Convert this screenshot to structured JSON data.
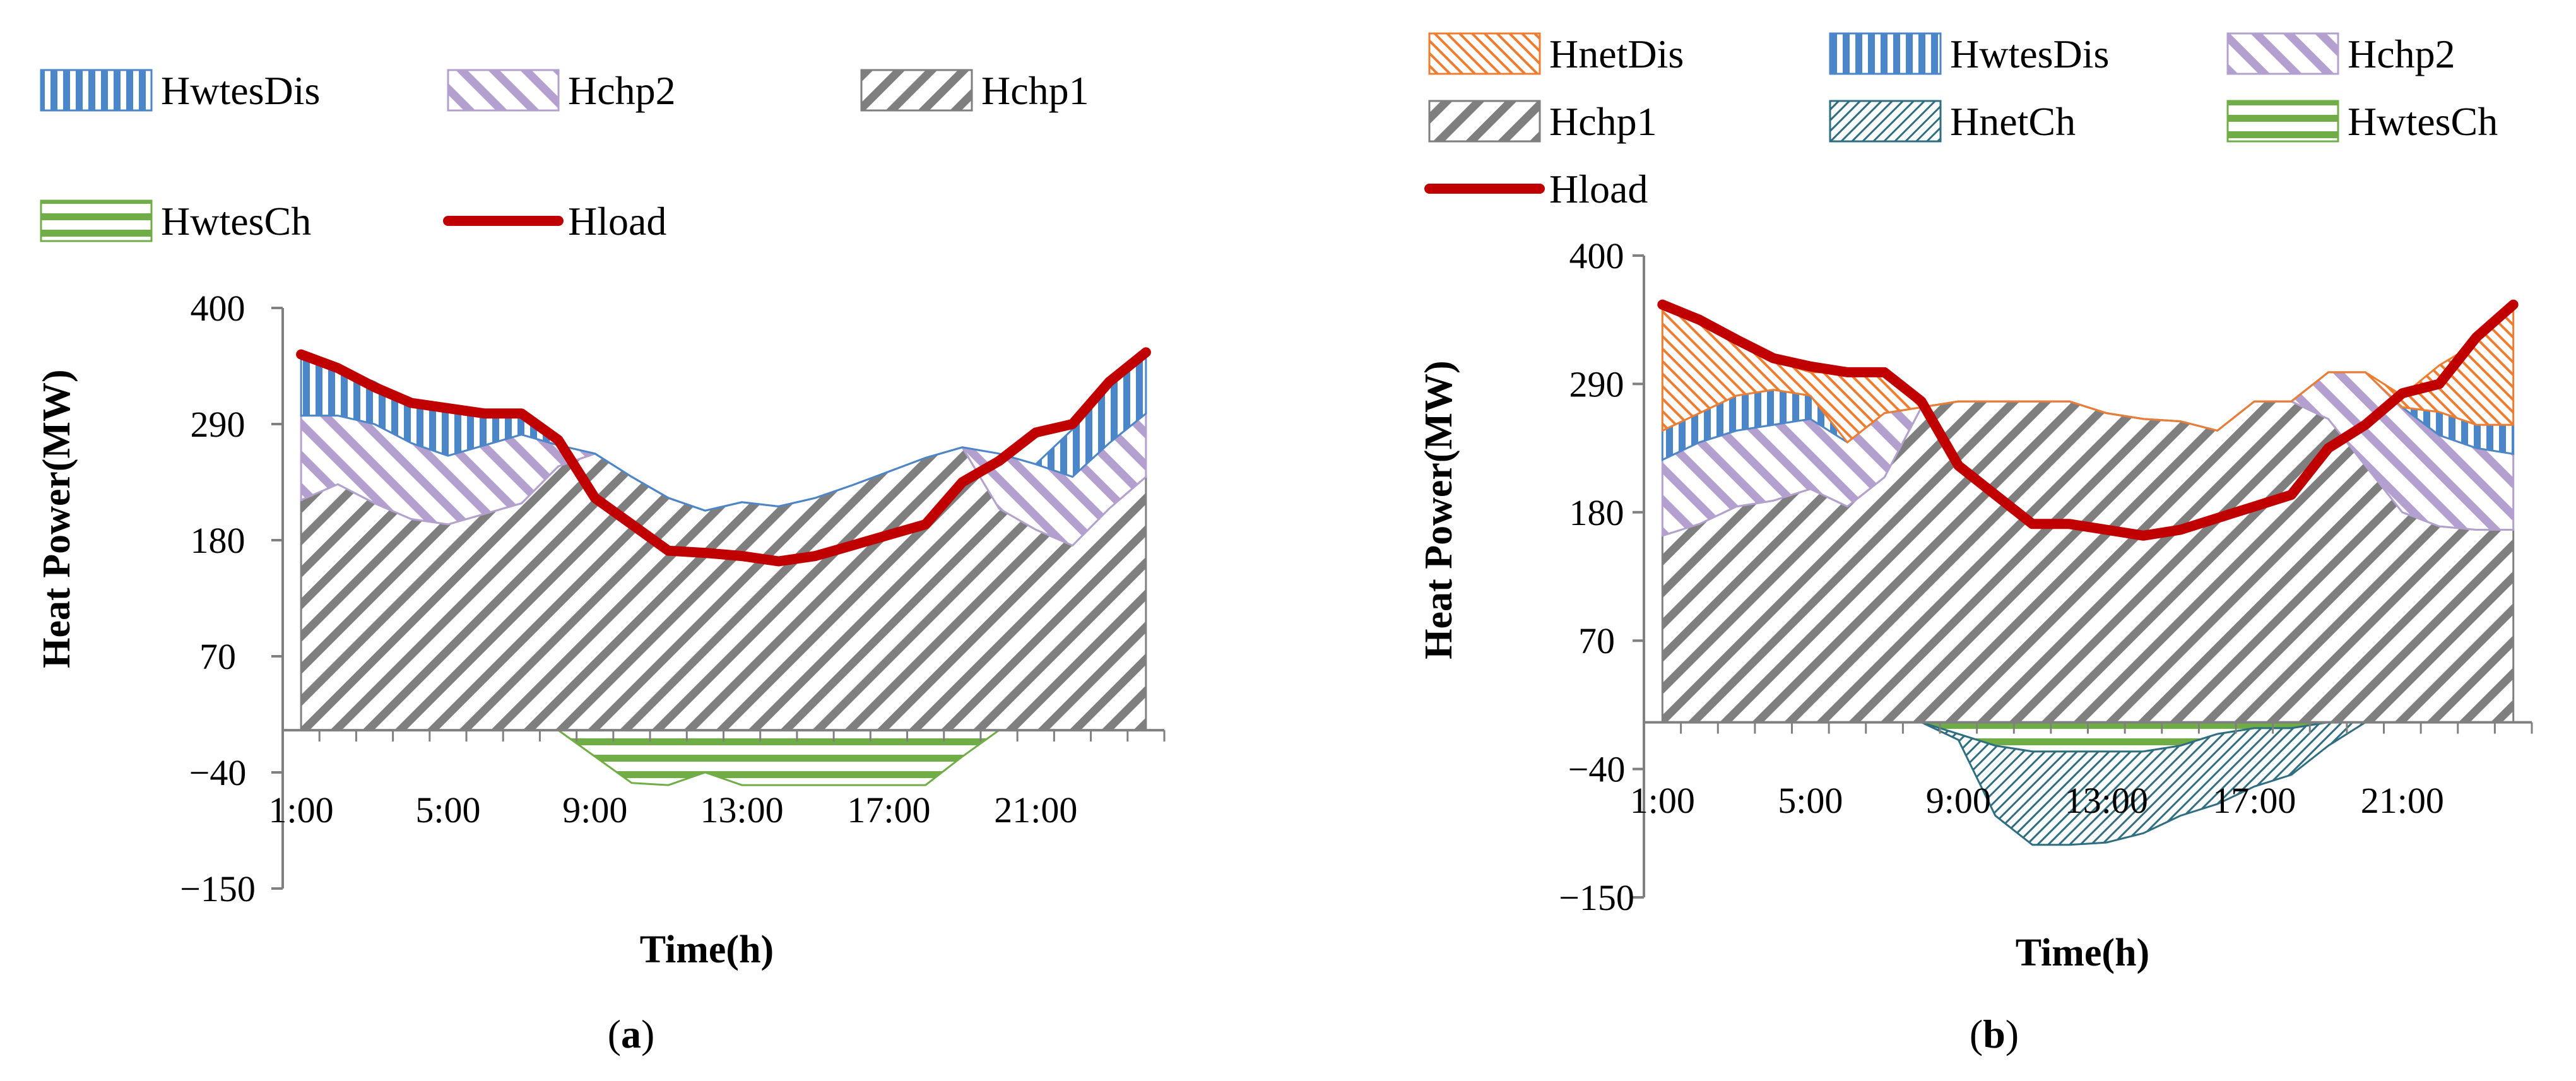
{
  "colors": {
    "HnetDis": "#ed7d31",
    "HwtesDis": "#4a86c8",
    "Hchp2": "#b4a0cf",
    "Hchp1": "#7f7f7f",
    "HnetCh": "#2e6e80",
    "HwtesCh": "#70ad47",
    "Hload": "#c00000",
    "axis": "#808080"
  },
  "chart_data": [
    {
      "id": "a",
      "type": "area",
      "stacked": true,
      "panel_label_prefix": "(",
      "panel_label_letter": "a",
      "panel_label_suffix": ")",
      "xlabel": "Time(h)",
      "ylabel": "Heat Power(MW)",
      "ylim": [
        -150,
        400
      ],
      "yticks": [
        "400",
        "290",
        "180",
        "70",
        "−40",
        "−150"
      ],
      "ytick_values": [
        400,
        290,
        180,
        70,
        -40,
        -150
      ],
      "hours": 24,
      "xtick_labels": [
        "1:00",
        "5:00",
        "9:00",
        "13:00",
        "17:00",
        "21:00"
      ],
      "xtick_hours": [
        1,
        5,
        9,
        13,
        17,
        21
      ],
      "legend": [
        "HwtesDis",
        "Hchp2",
        "Hchp1",
        "HwtesCh",
        "Hload"
      ],
      "series": [
        {
          "name": "Hchp1",
          "kind": "area",
          "values": [
            218,
            233,
            215,
            200,
            195,
            205,
            215,
            250,
            262,
            240,
            220,
            208,
            216,
            212,
            220,
            232,
            245,
            258,
            268,
            210,
            190,
            175,
            210,
            240
          ]
        },
        {
          "name": "Hchp2",
          "kind": "area",
          "values": [
            80,
            65,
            75,
            72,
            65,
            65,
            65,
            20,
            0,
            0,
            0,
            0,
            0,
            0,
            0,
            0,
            0,
            0,
            0,
            52,
            62,
            65,
            62,
            60
          ]
        },
        {
          "name": "HwtesDis",
          "kind": "area",
          "values": [
            58,
            45,
            40,
            38,
            45,
            30,
            20,
            0,
            0,
            0,
            0,
            0,
            0,
            0,
            0,
            0,
            0,
            0,
            0,
            0,
            0,
            45,
            60,
            60
          ]
        },
        {
          "name": "HwtesCh",
          "kind": "area",
          "values": [
            0,
            0,
            0,
            0,
            0,
            0,
            0,
            0,
            -25,
            -50,
            -52,
            -40,
            -52,
            -52,
            -52,
            -52,
            -52,
            -52,
            -25,
            0,
            0,
            0,
            0,
            0
          ]
        },
        {
          "name": "Hload",
          "kind": "line",
          "values": [
            356,
            343,
            325,
            310,
            305,
            300,
            300,
            275,
            220,
            195,
            170,
            168,
            165,
            160,
            165,
            175,
            185,
            195,
            235,
            255,
            282,
            290,
            330,
            358
          ]
        }
      ]
    },
    {
      "id": "b",
      "type": "area",
      "stacked": true,
      "panel_label_prefix": "(",
      "panel_label_letter": "b",
      "panel_label_suffix": ")",
      "xlabel": "Time(h)",
      "ylabel": "Heat Power(MW)",
      "ylim": [
        -150,
        400
      ],
      "yticks": [
        "400",
        "290",
        "180",
        "70",
        "−40",
        "−150"
      ],
      "ytick_values": [
        400,
        290,
        180,
        70,
        -40,
        -150
      ],
      "hours": 24,
      "xtick_labels": [
        "1:00",
        "5:00",
        "9:00",
        "13:00",
        "17:00",
        "21:00"
      ],
      "xtick_hours": [
        1,
        5,
        9,
        13,
        17,
        21
      ],
      "legend": [
        "HnetDis",
        "HwtesDis",
        "Hchp2",
        "Hchp1",
        "HnetCh",
        "HwtesCh",
        "Hload"
      ],
      "series": [
        {
          "name": "Hchp1",
          "kind": "area",
          "values": [
            160,
            170,
            185,
            190,
            200,
            185,
            210,
            270,
            275,
            275,
            275,
            275,
            265,
            260,
            258,
            250,
            275,
            275,
            260,
            220,
            180,
            168,
            165,
            165
          ]
        },
        {
          "name": "Hchp2",
          "kind": "area",
          "values": [
            65,
            70,
            65,
            65,
            60,
            55,
            55,
            0,
            0,
            0,
            0,
            0,
            0,
            0,
            0,
            0,
            0,
            0,
            40,
            80,
            90,
            78,
            70,
            65
          ]
        },
        {
          "name": "HwtesDis",
          "kind": "area",
          "values": [
            25,
            25,
            30,
            30,
            20,
            0,
            0,
            0,
            0,
            0,
            0,
            0,
            0,
            0,
            0,
            0,
            0,
            0,
            0,
            0,
            0,
            20,
            20,
            25
          ]
        },
        {
          "name": "HnetDis",
          "kind": "area",
          "values": [
            105,
            80,
            50,
            25,
            20,
            60,
            35,
            0,
            0,
            0,
            0,
            0,
            0,
            0,
            0,
            0,
            0,
            0,
            0,
            0,
            10,
            40,
            70,
            105
          ]
        },
        {
          "name": "HwtesCh",
          "kind": "area",
          "values": [
            0,
            0,
            0,
            0,
            0,
            0,
            0,
            0,
            -10,
            -20,
            -25,
            -25,
            -25,
            -25,
            -20,
            -10,
            -5,
            -5,
            0,
            0,
            0,
            0,
            0,
            0
          ]
        },
        {
          "name": "HnetCh",
          "kind": "area",
          "values": [
            0,
            0,
            0,
            0,
            0,
            0,
            0,
            0,
            -5,
            -60,
            -80,
            -80,
            -78,
            -70,
            -60,
            -60,
            -50,
            -40,
            -20,
            0,
            0,
            0,
            0,
            0
          ]
        },
        {
          "name": "Hload",
          "kind": "line",
          "values": [
            358,
            345,
            328,
            312,
            305,
            300,
            300,
            275,
            220,
            195,
            170,
            170,
            165,
            160,
            165,
            175,
            185,
            195,
            235,
            255,
            282,
            290,
            330,
            358
          ]
        }
      ]
    }
  ]
}
